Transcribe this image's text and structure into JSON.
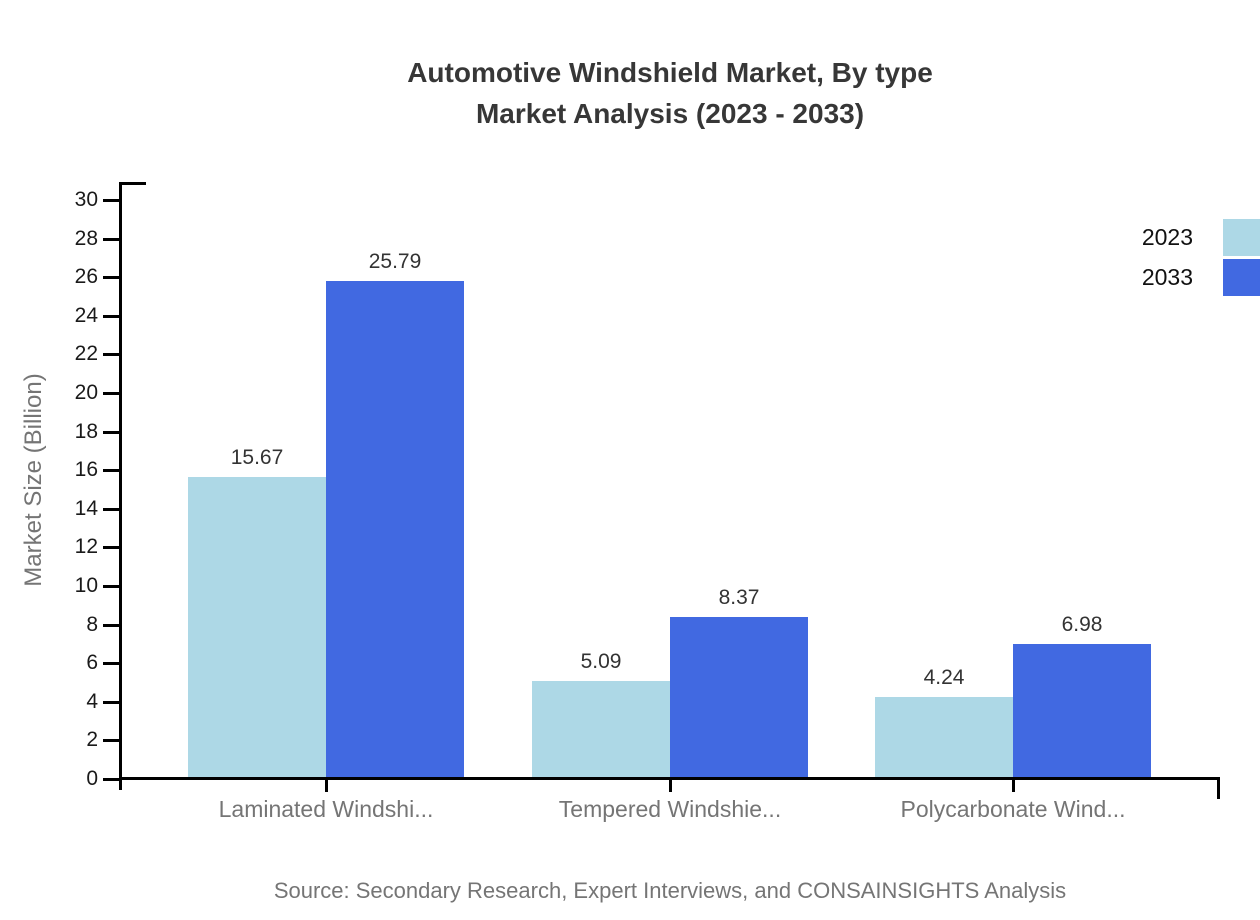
{
  "chart_data": {
    "type": "bar",
    "title": "Automotive Windshield Market, By type Market Analysis (2023 - 2033)",
    "title_lines": [
      "Automotive Windshield Market, By type",
      "Market Analysis (2023 - 2033)"
    ],
    "categories": [
      "Laminated Windshi...",
      "Tempered Windshie...",
      "Polycarbonate Wind..."
    ],
    "series": [
      {
        "name": "2023",
        "color": "#ADD8E6",
        "values": [
          15.67,
          5.09,
          4.24
        ]
      },
      {
        "name": "2033",
        "color": "#4169E1",
        "values": [
          25.79,
          8.37,
          6.98
        ]
      }
    ],
    "xlabel": "",
    "ylabel": "Market Size (Billion)",
    "ylim": [
      0,
      30
    ],
    "ytick_step": 2,
    "grid": false,
    "legend_position": "top-right",
    "data_labels_shown": true,
    "axis_color": "#000000",
    "text_colors": {
      "title": "#373737",
      "tick_labels": "#1a1a1a",
      "category_labels": "#757575",
      "data_labels": "#333333",
      "source": "#757575"
    },
    "source_note": "Source: Secondary Research, Expert Interviews, and CONSAINSIGHTS Analysis"
  }
}
